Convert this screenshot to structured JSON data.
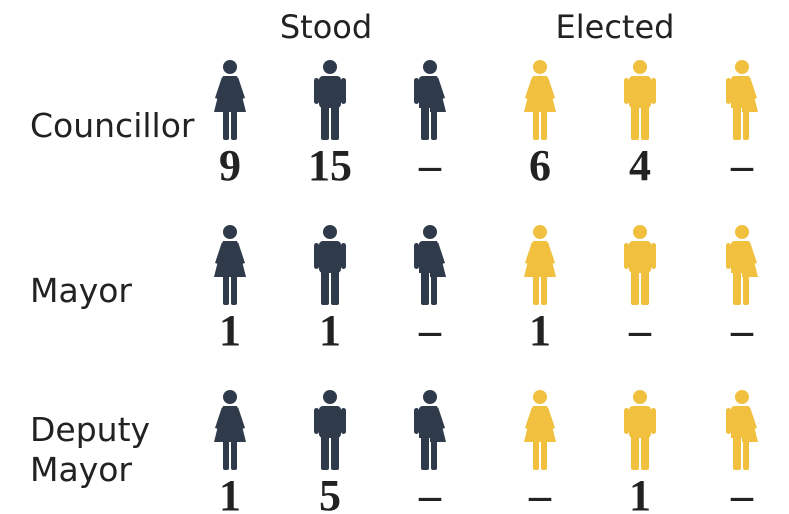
{
  "headers": [
    "Stood",
    "Elected"
  ],
  "rows": [
    {
      "label": "Councillor",
      "cells": [
        9,
        15,
        "–",
        6,
        4,
        "–"
      ]
    },
    {
      "label": "Mayor",
      "cells": [
        1,
        1,
        "–",
        1,
        "–",
        "–"
      ]
    },
    {
      "label": "Deputy Mayor",
      "cells": [
        1,
        5,
        "–",
        "–",
        1,
        "–"
      ]
    }
  ]
}
